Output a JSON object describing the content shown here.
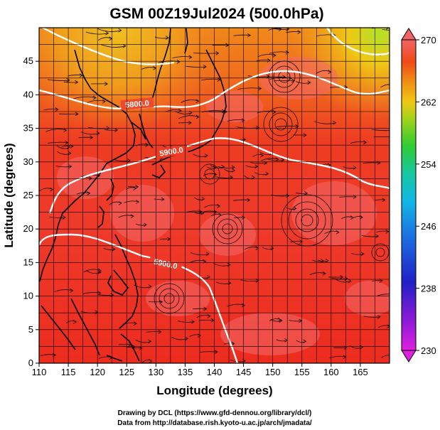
{
  "title": "GSM 00Z19Jul2024 (500.0hPa)",
  "x_axis": {
    "label": "Longitude (degrees)",
    "ticks": [
      "110",
      "115",
      "120",
      "125",
      "130",
      "135",
      "140",
      "145",
      "150",
      "155",
      "160",
      "165"
    ]
  },
  "y_axis": {
    "label": "Latitude  (degrees)",
    "ticks": [
      "0",
      "5",
      "10",
      "15",
      "20",
      "25",
      "30",
      "35",
      "40",
      "45"
    ]
  },
  "colorbar": {
    "ticks": [
      "230",
      "238",
      "246",
      "254",
      "262",
      "270"
    ],
    "range": [
      230,
      270
    ],
    "colors": [
      "#e020e0",
      "#9a1ad8",
      "#2020c8",
      "#1c6ce0",
      "#12b6e6",
      "#18c8a0",
      "#30cc30",
      "#9cd21c",
      "#f0c814",
      "#f08a14",
      "#f04a18",
      "#ee2a2a",
      "#f06464"
    ]
  },
  "contours": [
    {
      "label": "5800.0"
    },
    {
      "label": "5900.0"
    },
    {
      "label": "5900.0"
    }
  ],
  "credits": {
    "line1": "Drawing by DCL (https://www.gfd-dennou.org/library/dcl/)",
    "line2": "Data from http://database.rish.kyoto-u.ac.jp/arch/jmadata/"
  },
  "chart_data": {
    "type": "heatmap",
    "title": "GSM 00Z19Jul2024 (500.0hPa)",
    "xlabel": "Longitude (degrees)",
    "ylabel": "Latitude  (degrees)",
    "xlim": [
      110,
      170
    ],
    "ylim": [
      0,
      50
    ],
    "colorbar_range": [
      230,
      270
    ],
    "overlays": [
      "streamlines",
      "geopotential height contours",
      "coastlines"
    ],
    "contour_levels": [
      5800,
      5900
    ]
  }
}
